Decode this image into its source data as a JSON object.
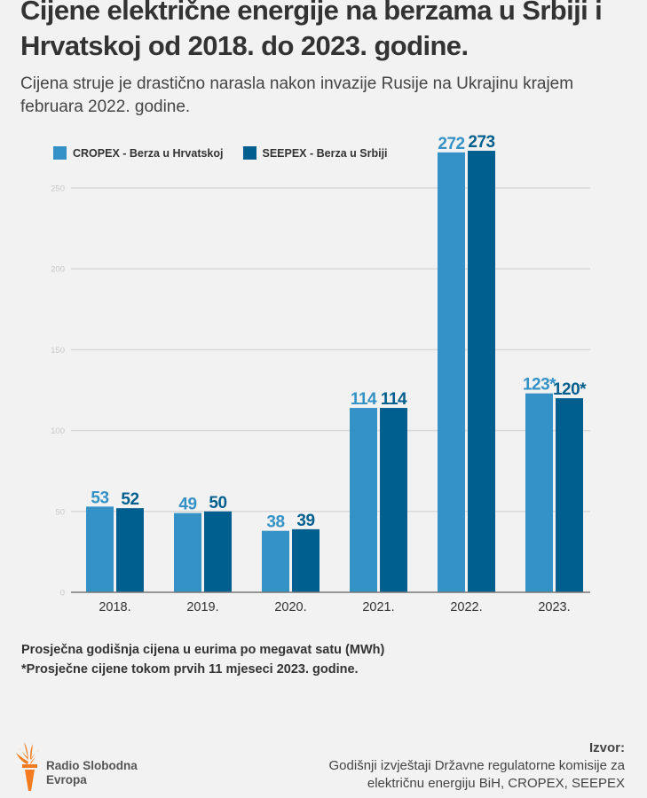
{
  "header": {
    "title": "Cijene električne energije na berzama u Srbiji i Hrvatskoj od 2018. do 2023. godine.",
    "subtitle": "Cijena struje je drastično narasla nakon invazije Rusije na Ukrajinu krajem februara 2022. godine."
  },
  "chart_data": {
    "type": "bar",
    "title": "Cijene električne energije na berzama u Srbiji i Hrvatskoj od 2018. do 2023. godine.",
    "xlabel": "",
    "ylabel": "Prosječna godišnja cijena u eurima po megavat satu (MWh)",
    "categories": [
      "2018.",
      "2019.",
      "2020.",
      "2021.",
      "2022.",
      "2023."
    ],
    "series": [
      {
        "name": "CROPEX - Berza u Hrvatskoj",
        "color": "#3592c7",
        "values": [
          53,
          49,
          38,
          114,
          272,
          123
        ],
        "labels": [
          "53",
          "49",
          "38",
          "114",
          "272",
          "123*"
        ]
      },
      {
        "name": "SEEPEX - Berza u Srbiji",
        "color": "#005f8f",
        "values": [
          52,
          50,
          39,
          114,
          273,
          120
        ],
        "labels": [
          "52",
          "50",
          "39",
          "114",
          "273",
          "120*"
        ]
      }
    ],
    "ylim": [
      0,
      250
    ],
    "yticks": [
      0,
      50,
      100,
      150,
      200,
      250
    ],
    "ytick_labels": [
      "0",
      "50",
      "100",
      "150",
      "200",
      "250"
    ],
    "grid": true,
    "legend": "top-left"
  },
  "legend": {
    "items": [
      {
        "label": "CROPEX - Berza u Hrvatskoj",
        "color": "#3592c7"
      },
      {
        "label": "SEEPEX - Berza u Srbiji",
        "color": "#005f8f"
      }
    ]
  },
  "notes": {
    "line1": "Prosječna godišnja cijena u eurima po megavat satu (MWh)",
    "line2": "*Prosječne cijene tokom prvih 11 mjeseci 2023. godine."
  },
  "logo": {
    "line1": "Radio Slobodna",
    "line2": "Evropa",
    "color": "#f47b20"
  },
  "source": {
    "label": "Izvor:",
    "line1": "Godišnji izvještaji Državne regulatorne komisije za",
    "line2": "električnu energiju BiH, CROPEX, SEEPEX"
  }
}
